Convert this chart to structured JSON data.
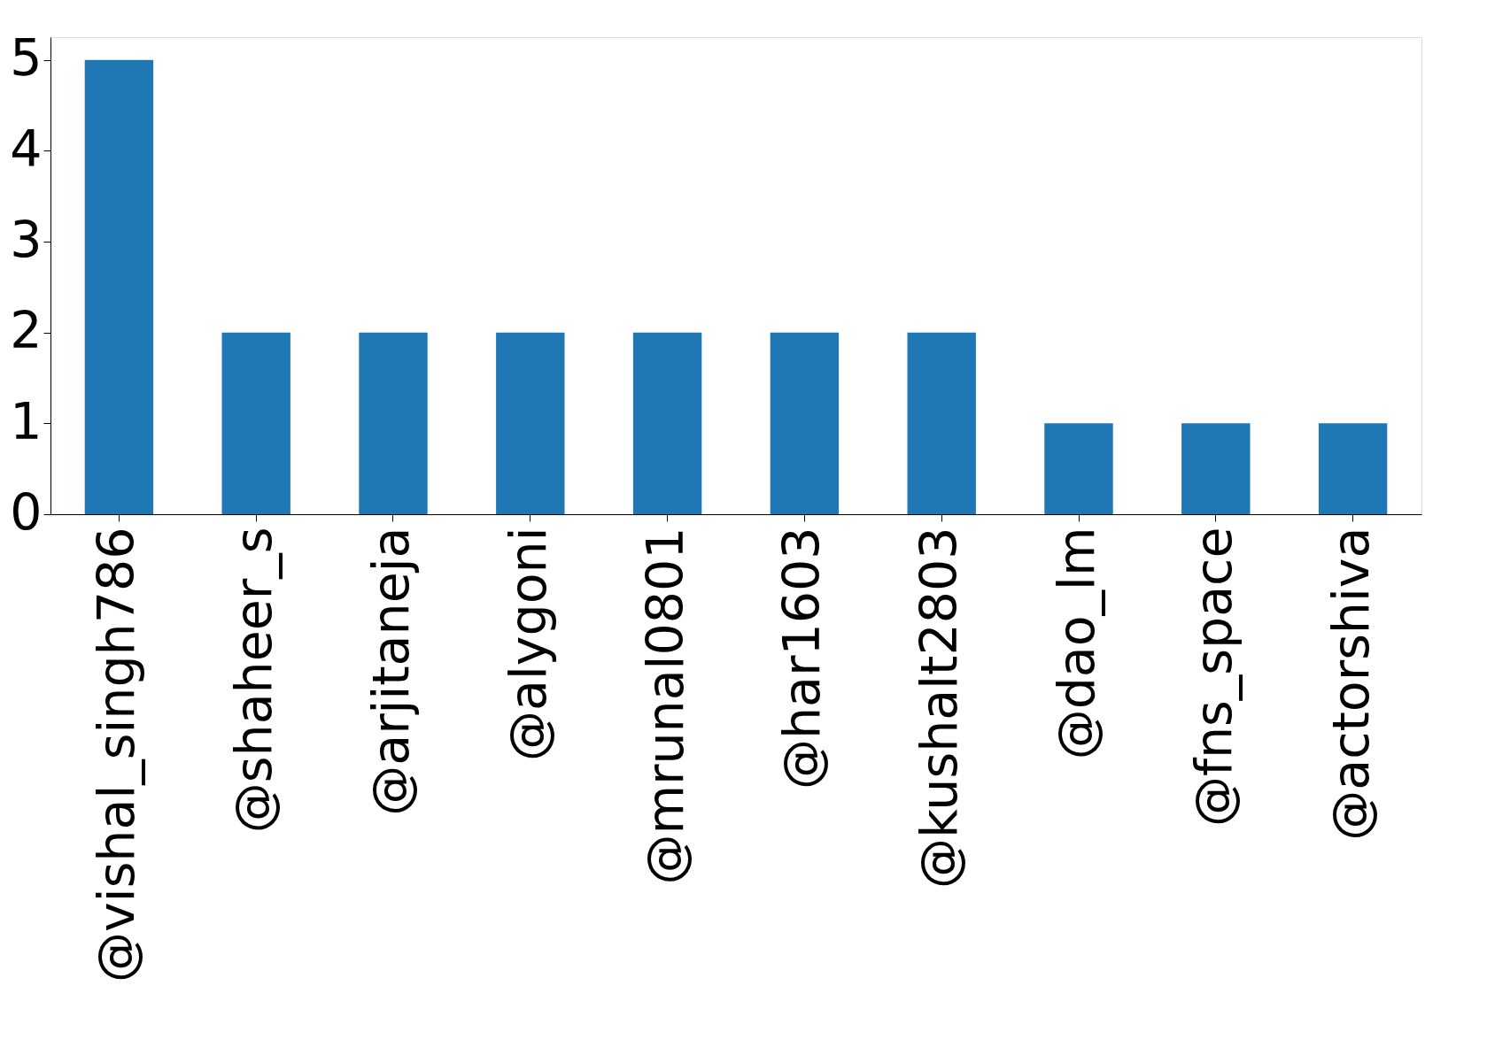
{
  "chart_data": {
    "type": "bar",
    "categories": [
      "@vishal_singh786",
      "@shaheer_s",
      "@arjitaneja",
      "@alygoni",
      "@mrunal0801",
      "@har1603",
      "@kushalt2803",
      "@dao_lm",
      "@fns_space",
      "@actorshiva"
    ],
    "values": [
      5,
      2,
      2,
      2,
      2,
      2,
      2,
      1,
      1,
      1
    ],
    "color": "#1f77b4",
    "ylim": [
      0,
      5.25
    ],
    "yticks": [
      0,
      1,
      2,
      3,
      4,
      5
    ],
    "grid": false
  }
}
